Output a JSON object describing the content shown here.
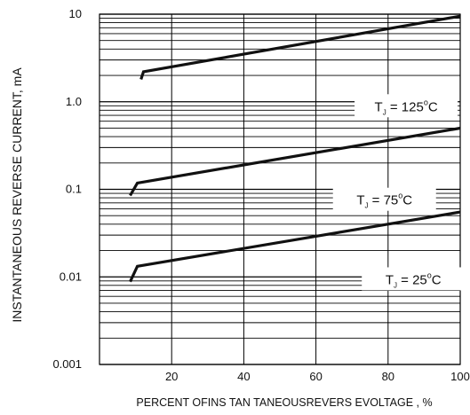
{
  "chart_data": {
    "type": "line",
    "title": "",
    "xlabel": "PERCENT OFINS TAN TANEOUSREVERS EVOLTAGE , %",
    "ylabel": "INSTANTANEOUS REVERSE CURRENT, mA",
    "xlim": [
      0,
      100
    ],
    "ylim": [
      0.001,
      10
    ],
    "yscale": "log",
    "grid": true,
    "x_ticks": [
      "20",
      "40",
      "60",
      "80",
      "100"
    ],
    "y_ticks": [
      "10",
      "1.0",
      "0.1",
      "0.01",
      "0.001"
    ],
    "series": [
      {
        "name_prefix": "T",
        "name_sub": "J",
        "name_value": " = 125",
        "name_sup": "o",
        "name_unit": "C",
        "points": [
          [
            11.5,
            1.8
          ],
          [
            12.2,
            2.2
          ],
          [
            100,
            9.5
          ]
        ]
      },
      {
        "name_prefix": "T",
        "name_sub": "J",
        "name_value": " = 75",
        "name_sup": "o",
        "name_unit": "C",
        "points": [
          [
            8.5,
            0.085
          ],
          [
            10.5,
            0.118
          ],
          [
            100,
            0.5
          ]
        ]
      },
      {
        "name_prefix": "T",
        "name_sub": "J",
        "name_value": " = 25",
        "name_sup": "o",
        "name_unit": "C",
        "points": [
          [
            8.5,
            0.0088
          ],
          [
            10.5,
            0.0132
          ],
          [
            100,
            0.055
          ]
        ]
      }
    ]
  }
}
